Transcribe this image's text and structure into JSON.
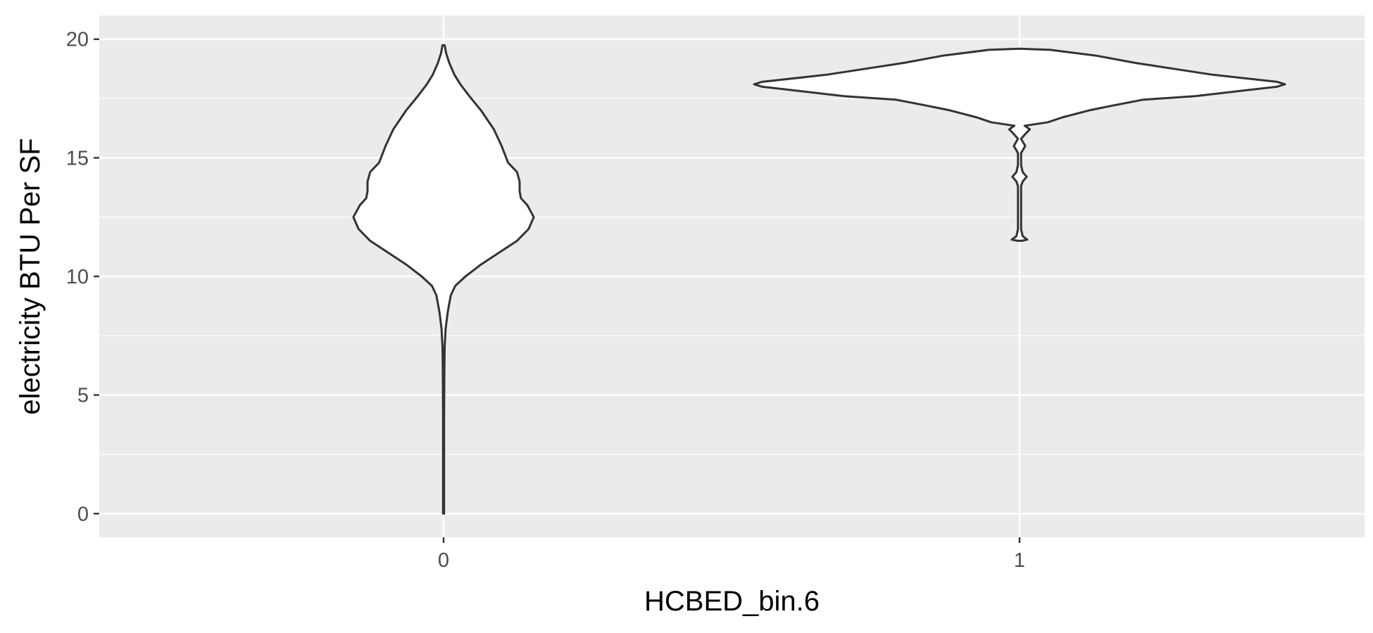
{
  "chart_data": {
    "type": "violin",
    "xlabel": "HCBED_bin.6",
    "ylabel": "electricity BTU Per SF",
    "categories": [
      "0",
      "1"
    ],
    "ylim": [
      -1,
      21
    ],
    "yticks": [
      0,
      5,
      10,
      15,
      20
    ],
    "grid": true,
    "legend": "none",
    "colors": {
      "panel": "#ebebeb",
      "grid": "#ffffff",
      "violin_fill": "#ffffff",
      "violin_stroke": "#333333",
      "tick_text": "#4d4d4d",
      "title_text": "#000000"
    },
    "violins": [
      {
        "category": "0",
        "profile": [
          [
            0,
            0.002
          ],
          [
            4,
            0.002
          ],
          [
            6,
            0.003
          ],
          [
            7,
            0.004
          ],
          [
            7.8,
            0.008
          ],
          [
            8.5,
            0.016
          ],
          [
            9.2,
            0.028
          ],
          [
            9.6,
            0.045
          ],
          [
            10,
            0.085
          ],
          [
            10.5,
            0.145
          ],
          [
            11,
            0.215
          ],
          [
            11.5,
            0.285
          ],
          [
            12,
            0.33
          ],
          [
            12.5,
            0.35
          ],
          [
            13,
            0.325
          ],
          [
            13.3,
            0.3
          ],
          [
            13.6,
            0.295
          ],
          [
            14,
            0.295
          ],
          [
            14.4,
            0.285
          ],
          [
            14.8,
            0.25
          ],
          [
            15.5,
            0.225
          ],
          [
            16.2,
            0.195
          ],
          [
            17,
            0.145
          ],
          [
            17.6,
            0.1
          ],
          [
            18.1,
            0.065
          ],
          [
            18.5,
            0.042
          ],
          [
            19,
            0.022
          ],
          [
            19.4,
            0.01
          ],
          [
            19.75,
            0.004
          ]
        ]
      },
      {
        "category": "1",
        "profile": [
          [
            11.5,
            0.008
          ],
          [
            11.55,
            0.03
          ],
          [
            11.7,
            0.012
          ],
          [
            12,
            0.006
          ],
          [
            13.8,
            0.006
          ],
          [
            14.0,
            0.012
          ],
          [
            14.2,
            0.028
          ],
          [
            14.4,
            0.012
          ],
          [
            14.7,
            0.006
          ],
          [
            15.2,
            0.006
          ],
          [
            15.5,
            0.022
          ],
          [
            15.8,
            0.006
          ],
          [
            16.0,
            0.022
          ],
          [
            16.2,
            0.04
          ],
          [
            16.35,
            0.02
          ],
          [
            16.5,
            0.11
          ],
          [
            16.7,
            0.165
          ],
          [
            17.0,
            0.27
          ],
          [
            17.2,
            0.36
          ],
          [
            17.45,
            0.48
          ],
          [
            17.6,
            0.68
          ],
          [
            18.0,
            1.0
          ],
          [
            18.1,
            1.03
          ],
          [
            18.2,
            1.0
          ],
          [
            18.5,
            0.75
          ],
          [
            19.0,
            0.45
          ],
          [
            19.3,
            0.3
          ],
          [
            19.55,
            0.12
          ],
          [
            19.6,
            0.0
          ]
        ]
      }
    ]
  }
}
